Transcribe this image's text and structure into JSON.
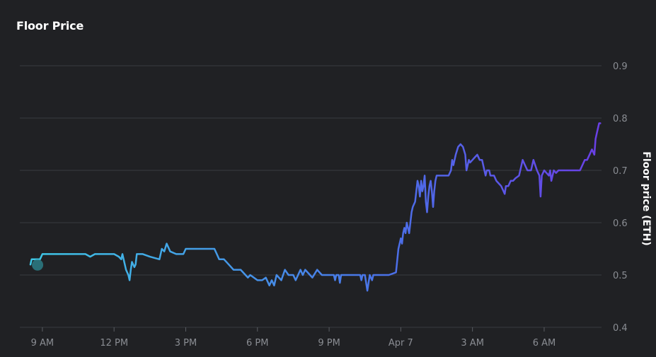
{
  "chart_data": {
    "type": "line",
    "title": "Floor Price",
    "ylabel": "Floor price (ETH)",
    "xlabel": "",
    "ylim": [
      0.4,
      0.9
    ],
    "yticks": [
      0.4,
      0.5,
      0.6,
      0.7,
      0.8,
      0.9
    ],
    "x_tick_labels": [
      "9 AM",
      "12 PM",
      "3 PM",
      "6 PM",
      "9 PM",
      "Apr 7",
      "3 AM",
      "6 AM"
    ],
    "x_tick_hours": [
      9,
      12,
      15,
      18,
      21,
      24,
      27,
      30
    ],
    "xlim_hours": [
      8.5,
      32.4
    ],
    "grid": true,
    "gradient_colors": [
      "#3ec8e6",
      "#4a72e8",
      "#6a3fe6"
    ],
    "marker_color": "#2e8a93",
    "series": [
      {
        "name": "",
        "points": [
          [
            8.5,
            0.52
          ],
          [
            8.55,
            0.53
          ],
          [
            8.65,
            0.53
          ],
          [
            8.75,
            0.53
          ],
          [
            8.9,
            0.53
          ],
          [
            9.0,
            0.54
          ],
          [
            9.5,
            0.54
          ],
          [
            10.0,
            0.54
          ],
          [
            10.5,
            0.54
          ],
          [
            10.8,
            0.54
          ],
          [
            11.0,
            0.535
          ],
          [
            11.2,
            0.54
          ],
          [
            11.5,
            0.54
          ],
          [
            12.0,
            0.54
          ],
          [
            12.2,
            0.535
          ],
          [
            12.3,
            0.53
          ],
          [
            12.35,
            0.54
          ],
          [
            12.5,
            0.51
          ],
          [
            12.6,
            0.5
          ],
          [
            12.65,
            0.49
          ],
          [
            12.7,
            0.51
          ],
          [
            12.75,
            0.525
          ],
          [
            12.85,
            0.515
          ],
          [
            12.9,
            0.52
          ],
          [
            12.95,
            0.54
          ],
          [
            13.2,
            0.54
          ],
          [
            13.5,
            0.535
          ],
          [
            13.9,
            0.53
          ],
          [
            14.0,
            0.55
          ],
          [
            14.1,
            0.545
          ],
          [
            14.2,
            0.56
          ],
          [
            14.35,
            0.545
          ],
          [
            14.6,
            0.54
          ],
          [
            14.9,
            0.54
          ],
          [
            15.0,
            0.55
          ],
          [
            15.5,
            0.55
          ],
          [
            16.0,
            0.55
          ],
          [
            16.2,
            0.55
          ],
          [
            16.3,
            0.54
          ],
          [
            16.4,
            0.53
          ],
          [
            16.6,
            0.53
          ],
          [
            16.8,
            0.52
          ],
          [
            17.0,
            0.51
          ],
          [
            17.3,
            0.51
          ],
          [
            17.5,
            0.5
          ],
          [
            17.6,
            0.495
          ],
          [
            17.7,
            0.5
          ],
          [
            18.0,
            0.49
          ],
          [
            18.2,
            0.49
          ],
          [
            18.35,
            0.495
          ],
          [
            18.5,
            0.48
          ],
          [
            18.6,
            0.49
          ],
          [
            18.7,
            0.48
          ],
          [
            18.8,
            0.5
          ],
          [
            19.0,
            0.49
          ],
          [
            19.15,
            0.51
          ],
          [
            19.3,
            0.5
          ],
          [
            19.5,
            0.5
          ],
          [
            19.6,
            0.49
          ],
          [
            19.8,
            0.51
          ],
          [
            19.9,
            0.5
          ],
          [
            20.0,
            0.51
          ],
          [
            20.2,
            0.5
          ],
          [
            20.3,
            0.495
          ],
          [
            20.5,
            0.51
          ],
          [
            20.7,
            0.5
          ],
          [
            21.0,
            0.5
          ],
          [
            21.2,
            0.5
          ],
          [
            21.25,
            0.49
          ],
          [
            21.3,
            0.5
          ],
          [
            21.4,
            0.5
          ],
          [
            21.45,
            0.485
          ],
          [
            21.5,
            0.5
          ],
          [
            21.6,
            0.5
          ],
          [
            22.0,
            0.5
          ],
          [
            22.3,
            0.5
          ],
          [
            22.35,
            0.49
          ],
          [
            22.4,
            0.5
          ],
          [
            22.5,
            0.5
          ],
          [
            22.6,
            0.47
          ],
          [
            22.7,
            0.5
          ],
          [
            22.8,
            0.49
          ],
          [
            22.85,
            0.5
          ],
          [
            23.0,
            0.5
          ],
          [
            23.3,
            0.5
          ],
          [
            23.5,
            0.5
          ],
          [
            23.8,
            0.505
          ],
          [
            23.9,
            0.55
          ],
          [
            23.95,
            0.56
          ],
          [
            24.0,
            0.57
          ],
          [
            24.05,
            0.56
          ],
          [
            24.1,
            0.58
          ],
          [
            24.15,
            0.59
          ],
          [
            24.2,
            0.58
          ],
          [
            24.25,
            0.6
          ],
          [
            24.3,
            0.59
          ],
          [
            24.35,
            0.58
          ],
          [
            24.4,
            0.6
          ],
          [
            24.45,
            0.62
          ],
          [
            24.5,
            0.63
          ],
          [
            24.6,
            0.64
          ],
          [
            24.65,
            0.66
          ],
          [
            24.7,
            0.68
          ],
          [
            24.75,
            0.67
          ],
          [
            24.8,
            0.65
          ],
          [
            24.85,
            0.68
          ],
          [
            24.9,
            0.66
          ],
          [
            24.95,
            0.67
          ],
          [
            25.0,
            0.69
          ],
          [
            25.05,
            0.64
          ],
          [
            25.1,
            0.62
          ],
          [
            25.15,
            0.65
          ],
          [
            25.2,
            0.67
          ],
          [
            25.25,
            0.68
          ],
          [
            25.3,
            0.66
          ],
          [
            25.35,
            0.63
          ],
          [
            25.4,
            0.66
          ],
          [
            25.45,
            0.68
          ],
          [
            25.5,
            0.69
          ],
          [
            25.7,
            0.69
          ],
          [
            25.9,
            0.69
          ],
          [
            26.0,
            0.69
          ],
          [
            26.1,
            0.7
          ],
          [
            26.15,
            0.72
          ],
          [
            26.2,
            0.71
          ],
          [
            26.3,
            0.73
          ],
          [
            26.4,
            0.745
          ],
          [
            26.5,
            0.75
          ],
          [
            26.6,
            0.745
          ],
          [
            26.7,
            0.73
          ],
          [
            26.75,
            0.7
          ],
          [
            26.8,
            0.71
          ],
          [
            26.85,
            0.72
          ],
          [
            26.9,
            0.715
          ],
          [
            27.0,
            0.72
          ],
          [
            27.1,
            0.725
          ],
          [
            27.2,
            0.73
          ],
          [
            27.3,
            0.72
          ],
          [
            27.4,
            0.72
          ],
          [
            27.5,
            0.7
          ],
          [
            27.55,
            0.69
          ],
          [
            27.6,
            0.7
          ],
          [
            27.7,
            0.7
          ],
          [
            27.75,
            0.69
          ],
          [
            27.9,
            0.69
          ],
          [
            28.0,
            0.68
          ],
          [
            28.1,
            0.675
          ],
          [
            28.2,
            0.67
          ],
          [
            28.3,
            0.66
          ],
          [
            28.35,
            0.655
          ],
          [
            28.4,
            0.67
          ],
          [
            28.5,
            0.67
          ],
          [
            28.6,
            0.68
          ],
          [
            28.7,
            0.68
          ],
          [
            28.8,
            0.685
          ],
          [
            28.95,
            0.69
          ],
          [
            29.05,
            0.71
          ],
          [
            29.1,
            0.72
          ],
          [
            29.2,
            0.71
          ],
          [
            29.3,
            0.7
          ],
          [
            29.45,
            0.7
          ],
          [
            29.55,
            0.72
          ],
          [
            29.7,
            0.7
          ],
          [
            29.8,
            0.69
          ],
          [
            29.85,
            0.65
          ],
          [
            29.9,
            0.69
          ],
          [
            30.0,
            0.7
          ],
          [
            30.1,
            0.695
          ],
          [
            30.2,
            0.69
          ],
          [
            30.25,
            0.7
          ],
          [
            30.3,
            0.68
          ],
          [
            30.4,
            0.7
          ],
          [
            30.5,
            0.695
          ],
          [
            30.6,
            0.7
          ],
          [
            30.8,
            0.7
          ],
          [
            31.0,
            0.7
          ],
          [
            31.3,
            0.7
          ],
          [
            31.5,
            0.7
          ],
          [
            31.6,
            0.71
          ],
          [
            31.7,
            0.72
          ],
          [
            31.8,
            0.72
          ],
          [
            31.9,
            0.73
          ],
          [
            32.0,
            0.74
          ],
          [
            32.05,
            0.735
          ],
          [
            32.1,
            0.73
          ],
          [
            32.15,
            0.76
          ],
          [
            32.2,
            0.77
          ],
          [
            32.25,
            0.78
          ],
          [
            32.3,
            0.79
          ],
          [
            32.35,
            0.79
          ]
        ]
      }
    ]
  }
}
